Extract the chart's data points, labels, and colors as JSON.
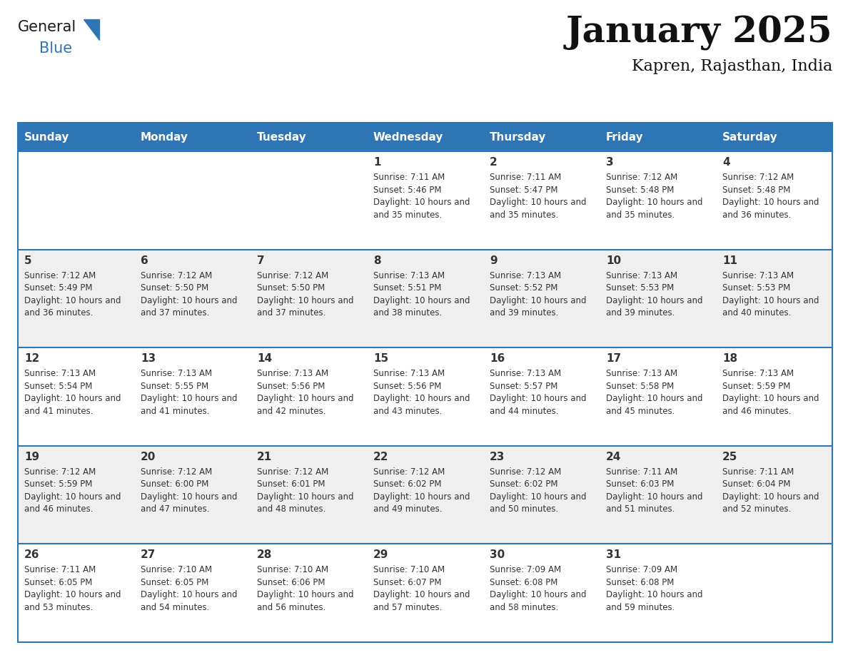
{
  "title": "January 2025",
  "subtitle": "Kapren, Rajasthan, India",
  "header_color": "#2E75B6",
  "header_text_color": "#FFFFFF",
  "day_names": [
    "Sunday",
    "Monday",
    "Tuesday",
    "Wednesday",
    "Thursday",
    "Friday",
    "Saturday"
  ],
  "bg_color": "#FFFFFF",
  "cell_alt_color": "#EFEFEF",
  "border_color": "#2E75B6",
  "text_color": "#333333",
  "days": [
    {
      "day": 1,
      "col": 3,
      "row": 0,
      "sunrise": "7:11 AM",
      "sunset": "5:46 PM",
      "daylight": "10 hours and 35 minutes."
    },
    {
      "day": 2,
      "col": 4,
      "row": 0,
      "sunrise": "7:11 AM",
      "sunset": "5:47 PM",
      "daylight": "10 hours and 35 minutes."
    },
    {
      "day": 3,
      "col": 5,
      "row": 0,
      "sunrise": "7:12 AM",
      "sunset": "5:48 PM",
      "daylight": "10 hours and 35 minutes."
    },
    {
      "day": 4,
      "col": 6,
      "row": 0,
      "sunrise": "7:12 AM",
      "sunset": "5:48 PM",
      "daylight": "10 hours and 36 minutes."
    },
    {
      "day": 5,
      "col": 0,
      "row": 1,
      "sunrise": "7:12 AM",
      "sunset": "5:49 PM",
      "daylight": "10 hours and 36 minutes."
    },
    {
      "day": 6,
      "col": 1,
      "row": 1,
      "sunrise": "7:12 AM",
      "sunset": "5:50 PM",
      "daylight": "10 hours and 37 minutes."
    },
    {
      "day": 7,
      "col": 2,
      "row": 1,
      "sunrise": "7:12 AM",
      "sunset": "5:50 PM",
      "daylight": "10 hours and 37 minutes."
    },
    {
      "day": 8,
      "col": 3,
      "row": 1,
      "sunrise": "7:13 AM",
      "sunset": "5:51 PM",
      "daylight": "10 hours and 38 minutes."
    },
    {
      "day": 9,
      "col": 4,
      "row": 1,
      "sunrise": "7:13 AM",
      "sunset": "5:52 PM",
      "daylight": "10 hours and 39 minutes."
    },
    {
      "day": 10,
      "col": 5,
      "row": 1,
      "sunrise": "7:13 AM",
      "sunset": "5:53 PM",
      "daylight": "10 hours and 39 minutes."
    },
    {
      "day": 11,
      "col": 6,
      "row": 1,
      "sunrise": "7:13 AM",
      "sunset": "5:53 PM",
      "daylight": "10 hours and 40 minutes."
    },
    {
      "day": 12,
      "col": 0,
      "row": 2,
      "sunrise": "7:13 AM",
      "sunset": "5:54 PM",
      "daylight": "10 hours and 41 minutes."
    },
    {
      "day": 13,
      "col": 1,
      "row": 2,
      "sunrise": "7:13 AM",
      "sunset": "5:55 PM",
      "daylight": "10 hours and 41 minutes."
    },
    {
      "day": 14,
      "col": 2,
      "row": 2,
      "sunrise": "7:13 AM",
      "sunset": "5:56 PM",
      "daylight": "10 hours and 42 minutes."
    },
    {
      "day": 15,
      "col": 3,
      "row": 2,
      "sunrise": "7:13 AM",
      "sunset": "5:56 PM",
      "daylight": "10 hours and 43 minutes."
    },
    {
      "day": 16,
      "col": 4,
      "row": 2,
      "sunrise": "7:13 AM",
      "sunset": "5:57 PM",
      "daylight": "10 hours and 44 minutes."
    },
    {
      "day": 17,
      "col": 5,
      "row": 2,
      "sunrise": "7:13 AM",
      "sunset": "5:58 PM",
      "daylight": "10 hours and 45 minutes."
    },
    {
      "day": 18,
      "col": 6,
      "row": 2,
      "sunrise": "7:13 AM",
      "sunset": "5:59 PM",
      "daylight": "10 hours and 46 minutes."
    },
    {
      "day": 19,
      "col": 0,
      "row": 3,
      "sunrise": "7:12 AM",
      "sunset": "5:59 PM",
      "daylight": "10 hours and 46 minutes."
    },
    {
      "day": 20,
      "col": 1,
      "row": 3,
      "sunrise": "7:12 AM",
      "sunset": "6:00 PM",
      "daylight": "10 hours and 47 minutes."
    },
    {
      "day": 21,
      "col": 2,
      "row": 3,
      "sunrise": "7:12 AM",
      "sunset": "6:01 PM",
      "daylight": "10 hours and 48 minutes."
    },
    {
      "day": 22,
      "col": 3,
      "row": 3,
      "sunrise": "7:12 AM",
      "sunset": "6:02 PM",
      "daylight": "10 hours and 49 minutes."
    },
    {
      "day": 23,
      "col": 4,
      "row": 3,
      "sunrise": "7:12 AM",
      "sunset": "6:02 PM",
      "daylight": "10 hours and 50 minutes."
    },
    {
      "day": 24,
      "col": 5,
      "row": 3,
      "sunrise": "7:11 AM",
      "sunset": "6:03 PM",
      "daylight": "10 hours and 51 minutes."
    },
    {
      "day": 25,
      "col": 6,
      "row": 3,
      "sunrise": "7:11 AM",
      "sunset": "6:04 PM",
      "daylight": "10 hours and 52 minutes."
    },
    {
      "day": 26,
      "col": 0,
      "row": 4,
      "sunrise": "7:11 AM",
      "sunset": "6:05 PM",
      "daylight": "10 hours and 53 minutes."
    },
    {
      "day": 27,
      "col": 1,
      "row": 4,
      "sunrise": "7:10 AM",
      "sunset": "6:05 PM",
      "daylight": "10 hours and 54 minutes."
    },
    {
      "day": 28,
      "col": 2,
      "row": 4,
      "sunrise": "7:10 AM",
      "sunset": "6:06 PM",
      "daylight": "10 hours and 56 minutes."
    },
    {
      "day": 29,
      "col": 3,
      "row": 4,
      "sunrise": "7:10 AM",
      "sunset": "6:07 PM",
      "daylight": "10 hours and 57 minutes."
    },
    {
      "day": 30,
      "col": 4,
      "row": 4,
      "sunrise": "7:09 AM",
      "sunset": "6:08 PM",
      "daylight": "10 hours and 58 minutes."
    },
    {
      "day": 31,
      "col": 5,
      "row": 4,
      "sunrise": "7:09 AM",
      "sunset": "6:08 PM",
      "daylight": "10 hours and 59 minutes."
    }
  ],
  "logo_general_color": "#1a1a1a",
  "logo_blue_color": "#2E75B6",
  "triangle_color": "#2E75B6",
  "title_font_size": 36,
  "subtitle_font_size": 16,
  "day_header_font_size": 11,
  "day_num_font_size": 11,
  "cell_text_font_size": 8.5
}
